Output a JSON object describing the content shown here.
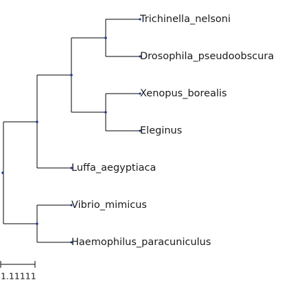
{
  "tree": {
    "leaves": [
      {
        "id": "trichinella",
        "label": "Trichinella_nelsoni"
      },
      {
        "id": "drosophila",
        "label": "Drosophila_pseudoobscura"
      },
      {
        "id": "xenopus",
        "label": "Xenopus_borealis"
      },
      {
        "id": "eleginus",
        "label": "Eleginus"
      },
      {
        "id": "luffa",
        "label": "Luffa_aegyptiaca"
      },
      {
        "id": "vibrio",
        "label": "Vibrio_mimicus"
      },
      {
        "id": "haemophilus",
        "label": "Haemophilus_paracuniculus"
      }
    ],
    "scale_bar": {
      "label": "1.11111"
    },
    "colors": {
      "branch": "#000000",
      "node": "#1f3a93",
      "text": "#1a1a1a"
    }
  }
}
